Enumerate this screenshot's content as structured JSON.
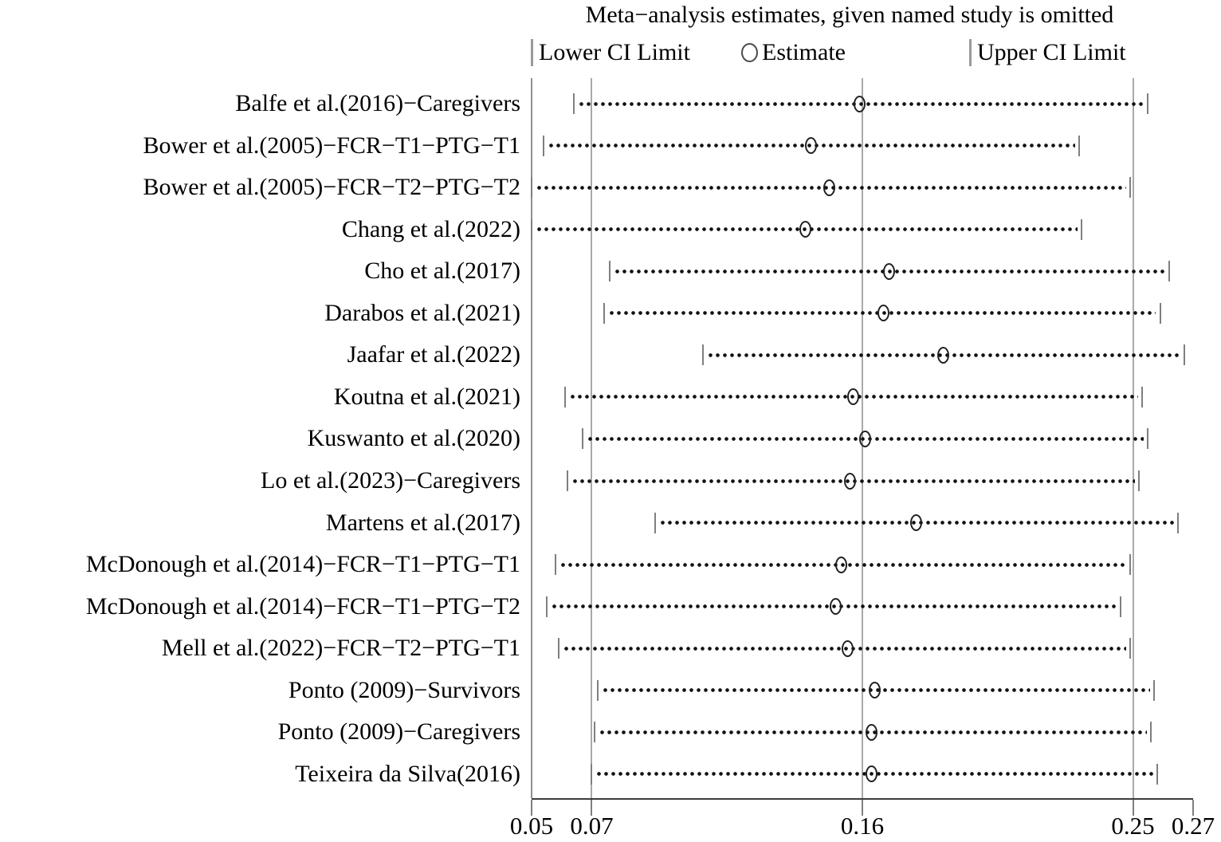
{
  "title": "Meta−analysis estimates, given named study is omitted",
  "legend": {
    "lower_label": "Lower CI Limit",
    "estimate_label": "Estimate",
    "upper_label": "Upper CI Limit"
  },
  "colors": {
    "dots": "#111111",
    "ci_end_tick": "#7f7f7f",
    "reference_line": "#a9a9a9",
    "axis_line": "#3c3c3c",
    "text": "#000000",
    "background": "#ffffff"
  },
  "chart_data": {
    "type": "scatter",
    "subtype": "leave-one-out-forest-plot",
    "title": "Meta−analysis estimates, given named study is omitted",
    "xlabel": "",
    "ylabel": "",
    "xlim": [
      0.05,
      0.27
    ],
    "x_axis_ticks": [
      {
        "value": 0.05,
        "label": "0.05"
      },
      {
        "value": 0.07,
        "label": "0.07"
      },
      {
        "value": 0.16,
        "label": "0.16"
      },
      {
        "value": 0.25,
        "label": "0.25"
      },
      {
        "value": 0.27,
        "label": "0.27"
      }
    ],
    "reference_lines": [
      0.07,
      0.16,
      0.25
    ],
    "grid": false,
    "legend_position": "top",
    "studies": [
      {
        "label": "Balfe et al.(2016)−Caregivers",
        "lower": 0.064,
        "estimate": 0.159,
        "upper": 0.255
      },
      {
        "label": "Bower et al.(2005)−FCR−T1−PTG−T1",
        "lower": 0.054,
        "estimate": 0.143,
        "upper": 0.232
      },
      {
        "label": "Bower et al.(2005)−FCR−T2−PTG−T2",
        "lower": 0.05,
        "estimate": 0.149,
        "upper": 0.249
      },
      {
        "label": "Chang et al.(2022)",
        "lower": 0.05,
        "estimate": 0.141,
        "upper": 0.233
      },
      {
        "label": "Cho et al.(2017)",
        "lower": 0.076,
        "estimate": 0.169,
        "upper": 0.262
      },
      {
        "label": "Darabos et al.(2021)",
        "lower": 0.074,
        "estimate": 0.167,
        "upper": 0.259
      },
      {
        "label": "Jaafar et al.(2022)",
        "lower": 0.107,
        "estimate": 0.187,
        "upper": 0.267
      },
      {
        "label": "Koutna et al.(2021)",
        "lower": 0.061,
        "estimate": 0.157,
        "upper": 0.253
      },
      {
        "label": "Kuswanto et al.(2020)",
        "lower": 0.067,
        "estimate": 0.161,
        "upper": 0.255
      },
      {
        "label": "Lo et al.(2023)−Caregivers",
        "lower": 0.062,
        "estimate": 0.156,
        "upper": 0.252
      },
      {
        "label": "Martens et al.(2017)",
        "lower": 0.091,
        "estimate": 0.178,
        "upper": 0.265
      },
      {
        "label": "McDonough et al.(2014)−FCR−T1−PTG−T1",
        "lower": 0.058,
        "estimate": 0.153,
        "upper": 0.249
      },
      {
        "label": "McDonough et al.(2014)−FCR−T1−PTG−T2",
        "lower": 0.055,
        "estimate": 0.151,
        "upper": 0.246
      },
      {
        "label": "Mell et al.(2022)−FCR−T2−PTG−T1",
        "lower": 0.059,
        "estimate": 0.155,
        "upper": 0.249
      },
      {
        "label": "Ponto (2009)−Survivors",
        "lower": 0.072,
        "estimate": 0.164,
        "upper": 0.257
      },
      {
        "label": "Ponto (2009)−Caregivers",
        "lower": 0.071,
        "estimate": 0.163,
        "upper": 0.256
      },
      {
        "label": "Teixeira da Silva(2016)",
        "lower": 0.07,
        "estimate": 0.163,
        "upper": 0.258
      }
    ]
  }
}
